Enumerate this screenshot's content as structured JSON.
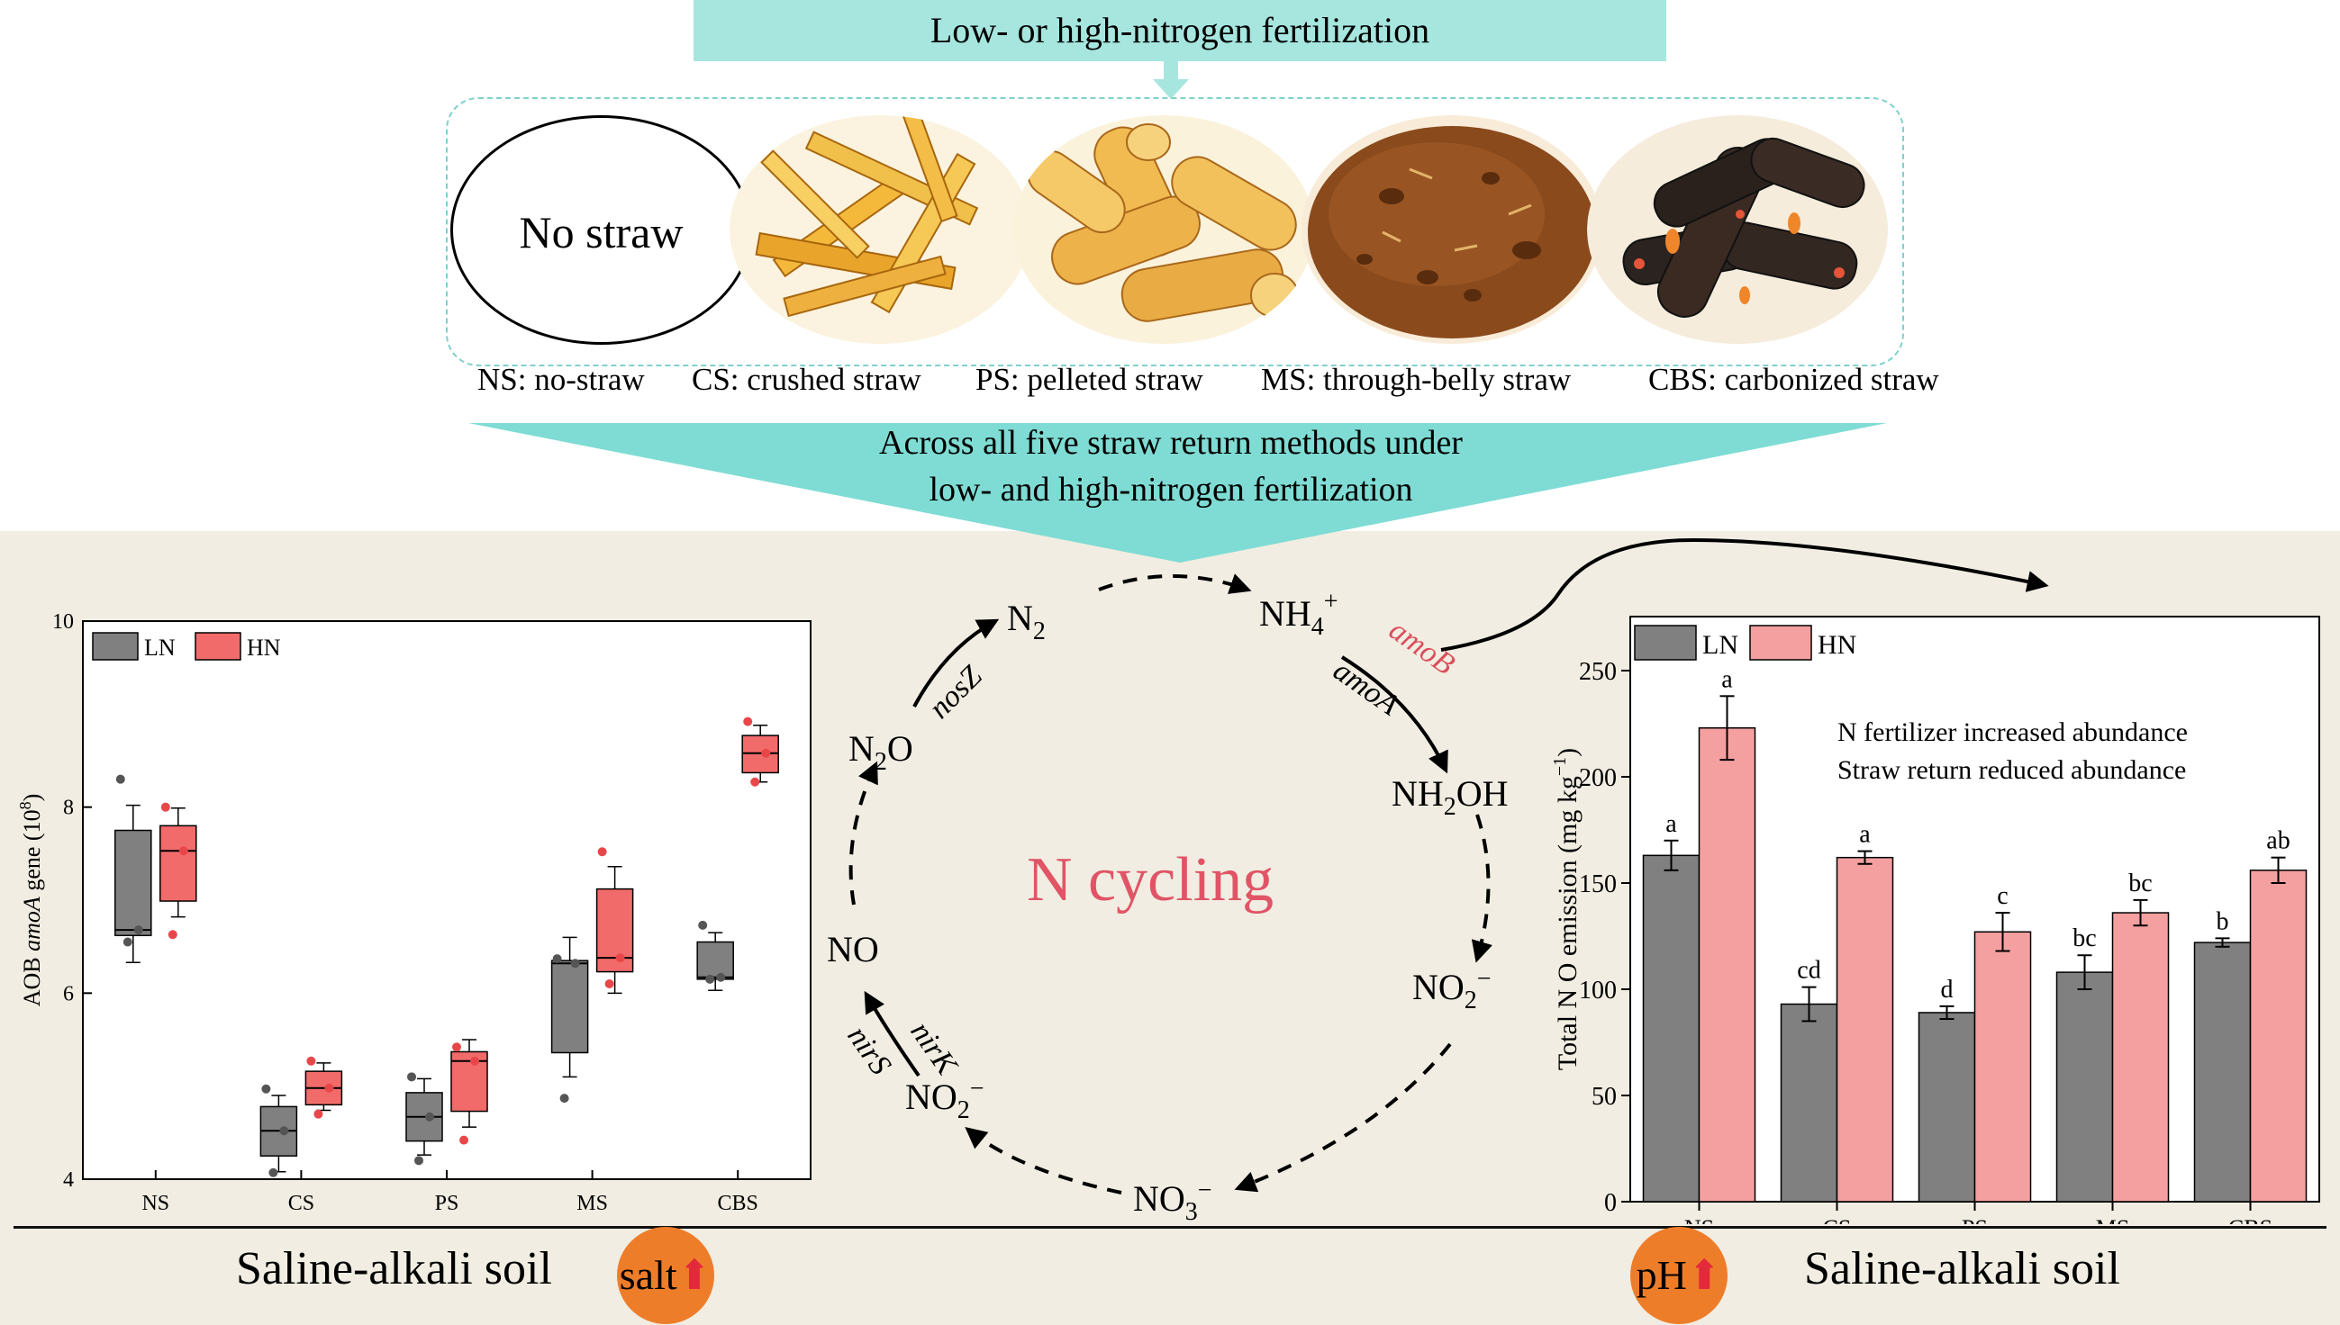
{
  "header": {
    "title": "Low- or high-nitrogen fertilization"
  },
  "methods": {
    "no_straw_text": "No straw",
    "labels": [
      "NS: no-straw",
      "CS: crushed straw",
      "PS: pelleted straw",
      "MS: through-belly straw",
      "CBS: carbonized straw"
    ]
  },
  "funnel": {
    "line1": "Across all five straw return methods under",
    "line2": "low- and high-nitrogen fertilization"
  },
  "cycle": {
    "center": "N cycling",
    "nodes": {
      "nh4": "NH",
      "nh4_sub": "4",
      "nh4_sup": "+",
      "nh2oh_a": "NH",
      "nh2oh_sub": "2",
      "nh2oh_b": "OH",
      "no2_right": "NO",
      "no2_right_sub": "2",
      "no2_right_sup": "−",
      "no3": "NO",
      "no3_sub": "3",
      "no3_sup": "−",
      "no2_left": "NO",
      "no2_left_sub": "2",
      "no2_left_sup": "−",
      "no": "NO",
      "n2o_a": "N",
      "n2o_sub": "2",
      "n2o_b": "O",
      "n2": "N",
      "n2_sub": "2"
    },
    "genes": {
      "amob": "amoB",
      "amoa": "amoA",
      "nosz": "nosZ",
      "nirk": "nirK",
      "nirs": "nirS"
    },
    "colors": {
      "amob": "#d94f5c",
      "center": "#e05466"
    }
  },
  "left_chart": {
    "type": "box",
    "ylabel_a": "AOB ",
    "ylabel_italic": "amoA",
    "ylabel_b": " gene (10",
    "ylabel_sup": "8",
    "ylabel_c": ")",
    "ylim": [
      4,
      10
    ],
    "yticks": [
      "4",
      "6",
      "8",
      "10"
    ],
    "categories": [
      "NS",
      "CS",
      "PS",
      "MS",
      "CBS"
    ],
    "legend": [
      "LN",
      "HN"
    ],
    "colors": {
      "LN": "#808080",
      "HN": "#f26b6b"
    },
    "LN": [
      {
        "q1": 6.62,
        "median": 6.68,
        "q3": 7.75,
        "whisker_low": 6.33,
        "whisker_high": 8.02,
        "points": [
          8.3,
          6.68,
          6.55
        ]
      },
      {
        "q1": 4.25,
        "median": 4.52,
        "q3": 4.78,
        "whisker_low": 4.08,
        "whisker_high": 4.9,
        "points": [
          4.97,
          4.52,
          4.07
        ]
      },
      {
        "q1": 4.41,
        "median": 4.67,
        "q3": 4.93,
        "whisker_low": 4.26,
        "whisker_high": 5.08,
        "points": [
          5.1,
          4.67,
          4.2
        ]
      },
      {
        "q1": 5.36,
        "median": 6.32,
        "q3": 6.35,
        "whisker_low": 5.1,
        "whisker_high": 6.6,
        "points": [
          6.37,
          6.32,
          4.87
        ]
      },
      {
        "q1": 6.15,
        "median": 6.17,
        "q3": 6.55,
        "whisker_low": 6.03,
        "whisker_high": 6.65,
        "points": [
          6.73,
          6.17,
          6.15
        ]
      }
    ],
    "HN": [
      {
        "q1": 6.99,
        "median": 7.53,
        "q3": 7.8,
        "whisker_low": 6.82,
        "whisker_high": 7.99,
        "points": [
          8.0,
          7.53,
          6.63
        ]
      },
      {
        "q1": 4.8,
        "median": 4.98,
        "q3": 5.16,
        "whisker_low": 4.74,
        "whisker_high": 5.25,
        "points": [
          5.27,
          4.98,
          4.7
        ]
      },
      {
        "q1": 4.73,
        "median": 5.27,
        "q3": 5.37,
        "whisker_low": 4.56,
        "whisker_high": 5.5,
        "points": [
          5.42,
          5.27,
          4.42
        ]
      },
      {
        "q1": 6.23,
        "median": 6.38,
        "q3": 7.12,
        "whisker_low": 6.0,
        "whisker_high": 7.36,
        "points": [
          7.52,
          6.38,
          6.1
        ]
      },
      {
        "q1": 8.37,
        "median": 8.58,
        "q3": 8.77,
        "whisker_low": 8.27,
        "whisker_high": 8.88,
        "points": [
          8.92,
          8.58,
          8.27
        ]
      }
    ]
  },
  "right_chart": {
    "type": "bar",
    "ylabel_a": "Total N O emission (mg kg",
    "ylabel_sup": "−1",
    "ylabel_b": ")",
    "ylim": [
      0,
      250
    ],
    "yticks": [
      "0",
      "50",
      "100",
      "150",
      "200",
      "250"
    ],
    "categories": [
      "NS",
      "CS",
      "PS",
      "MS",
      "CBS"
    ],
    "legend": [
      "LN",
      "HN"
    ],
    "colors": {
      "LN": "#808080",
      "HN": "#f5a0a0"
    },
    "series": [
      {
        "name": "LN",
        "values": [
          163,
          93,
          89,
          108,
          122
        ],
        "errors": [
          7,
          8,
          3,
          8,
          2
        ],
        "letters": [
          "a",
          "cd",
          "d",
          "bc",
          "b"
        ]
      },
      {
        "name": "HN",
        "values": [
          223,
          162,
          127,
          136,
          156
        ],
        "errors": [
          15,
          3,
          9,
          6,
          6
        ],
        "letters": [
          "a",
          "a",
          "c",
          "bc",
          "ab"
        ]
      }
    ],
    "annotations": [
      "N fertilizer increased abundance",
      "Straw return reduced abundance"
    ]
  },
  "bottom": {
    "left_title": "Saline-alkali soil",
    "right_title": "Saline-alkali soil",
    "salt_badge": "salt",
    "ph_badge": "pH",
    "arrow_glyph": "⬆"
  }
}
